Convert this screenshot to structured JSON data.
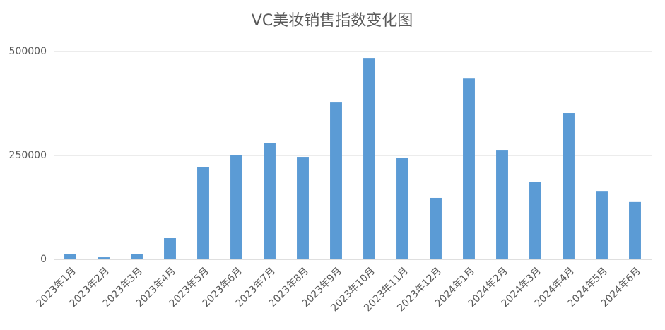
{
  "chart_data": {
    "type": "bar",
    "title": "VC美妆销售指数变化图",
    "categories": [
      "2023年1月",
      "2023年2月",
      "2023年3月",
      "2023年4月",
      "2023年5月",
      "2023年6月",
      "2023年7月",
      "2023年8月",
      "2023年9月",
      "2023年10月",
      "2023年11月",
      "2023年12月",
      "2024年1月",
      "2024年2月",
      "2024年3月",
      "2024年4月",
      "2024年5月",
      "2024年6月"
    ],
    "values": [
      13600,
      5000,
      13600,
      51000,
      222700,
      250000,
      280500,
      246500,
      377400,
      484500,
      244800,
      148000,
      435000,
      263500,
      187000,
      352000,
      163000,
      138000
    ],
    "color": "#5b9bd5",
    "ylim": [
      0,
      500000
    ],
    "yticks": [
      0,
      250000,
      500000
    ],
    "grid": true
  }
}
